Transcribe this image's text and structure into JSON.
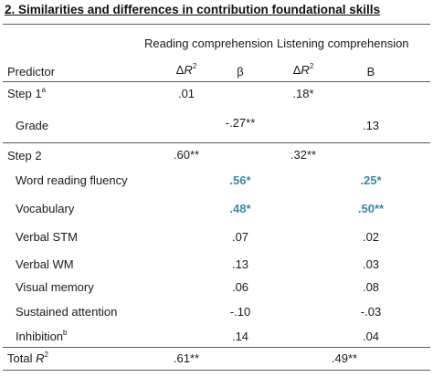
{
  "title": "2. Similarities and differences in contribution foundational skills",
  "groups": {
    "reading": "Reading comprehension",
    "listening": "Listening comprehension"
  },
  "headers": {
    "predictor": "Predictor",
    "delta_prefix": "Δ",
    "r_letter": "R",
    "r_sup": "2",
    "beta_reading": "β",
    "beta_listening": "B"
  },
  "rows": {
    "step1": {
      "label": "Step 1",
      "sup": "a",
      "r_dr2": ".01",
      "l_dr2": ".18*"
    },
    "grade": {
      "label": "Grade",
      "r_b": "-.27**",
      "l_b": ".13"
    },
    "step2": {
      "label": "Step 2",
      "r_dr2": ".60**",
      "l_dr2": ".32**"
    },
    "wrf": {
      "label": "Word reading fluency",
      "r_b": ".56*",
      "l_b": ".25*"
    },
    "vocab": {
      "label": "Vocabulary",
      "r_b": ".48*",
      "l_b": ".50**"
    },
    "vstm": {
      "label": "Verbal STM",
      "r_b": ".07",
      "l_b": ".02"
    },
    "vwm": {
      "label": "Verbal WM",
      "r_b": ".13",
      "l_b": ".03"
    },
    "vis": {
      "label": "Visual memory",
      "r_b": ".06",
      "l_b": ".08"
    },
    "sust": {
      "label": "Sustained attention",
      "r_b": "-.10",
      "l_b": "-.03"
    },
    "inhib": {
      "label": "Inhibition",
      "sup": "b",
      "r_b": ".14",
      "l_b": ".04"
    }
  },
  "total": {
    "label_prefix": "Total ",
    "r_letter": "R",
    "r_sup": "2",
    "reading": ".61**",
    "listening": ".49**"
  },
  "colors": {
    "highlight": "#3a8aa3",
    "rule": "#5a5a5a"
  }
}
